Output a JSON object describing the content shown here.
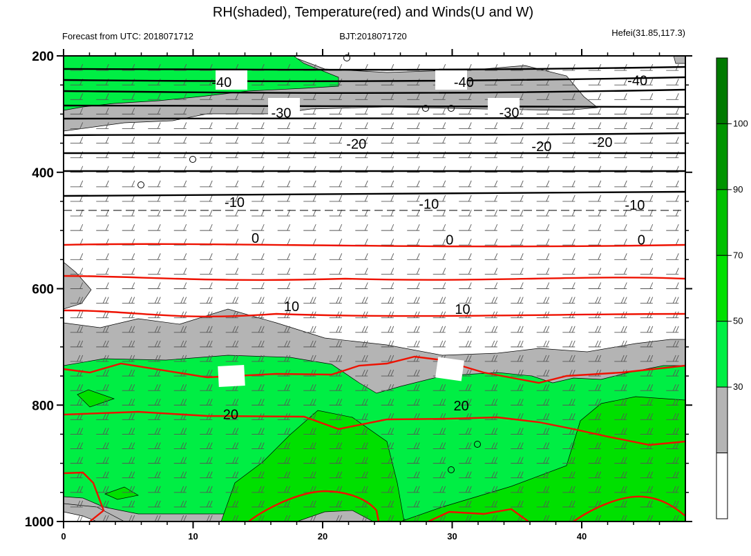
{
  "title": "RH(shaded), Temperature(red) and Winds(U and W)",
  "subtitle_left": "Forecast from UTC: 2018071712",
  "subtitle_center": "BJT:2018071720",
  "subtitle_right": "Hefei(31.85,117.3)",
  "chart_data": {
    "type": "contour",
    "x_ticks": [
      "0",
      "10",
      "20",
      "30",
      "40"
    ],
    "y_ticks": [
      "200",
      "400",
      "600",
      "800",
      "1000"
    ],
    "xlim": [
      0,
      48
    ],
    "ylim": [
      1000,
      200
    ],
    "grid": false,
    "colorbar": {
      "levels": [
        "30",
        "50",
        "70",
        "90",
        "100"
      ],
      "colors": [
        "#ffffff",
        "#b4b4b4",
        "#00ee44",
        "#00e000",
        "#00c000",
        "#009400",
        "#007a00"
      ]
    },
    "temperature_contour_labels": [
      {
        "value": "-40",
        "x": 12.2,
        "p": 247
      },
      {
        "value": "-40",
        "x": 30.9,
        "p": 247
      },
      {
        "value": "-40",
        "x": 44.3,
        "p": 244
      },
      {
        "value": "-30",
        "x": 16.8,
        "p": 300
      },
      {
        "value": "-30",
        "x": 34.4,
        "p": 299
      },
      {
        "value": "-20",
        "x": 22.6,
        "p": 353
      },
      {
        "value": "-20",
        "x": 36.9,
        "p": 357
      },
      {
        "value": "-20",
        "x": 41.6,
        "p": 350
      },
      {
        "value": "-10",
        "x": 13.2,
        "p": 453
      },
      {
        "value": "-10",
        "x": 28.2,
        "p": 456
      },
      {
        "value": "-10",
        "x": 44.1,
        "p": 458
      },
      {
        "value": "0",
        "x": 14.8,
        "p": 515
      },
      {
        "value": "0",
        "x": 29.8,
        "p": 518
      },
      {
        "value": "0",
        "x": 44.6,
        "p": 518
      },
      {
        "value": "10",
        "x": 17.6,
        "p": 632
      },
      {
        "value": "10",
        "x": 30.8,
        "p": 637
      },
      {
        "value": "20",
        "x": 12.9,
        "p": 818
      },
      {
        "value": "20",
        "x": 30.7,
        "p": 803
      }
    ]
  }
}
